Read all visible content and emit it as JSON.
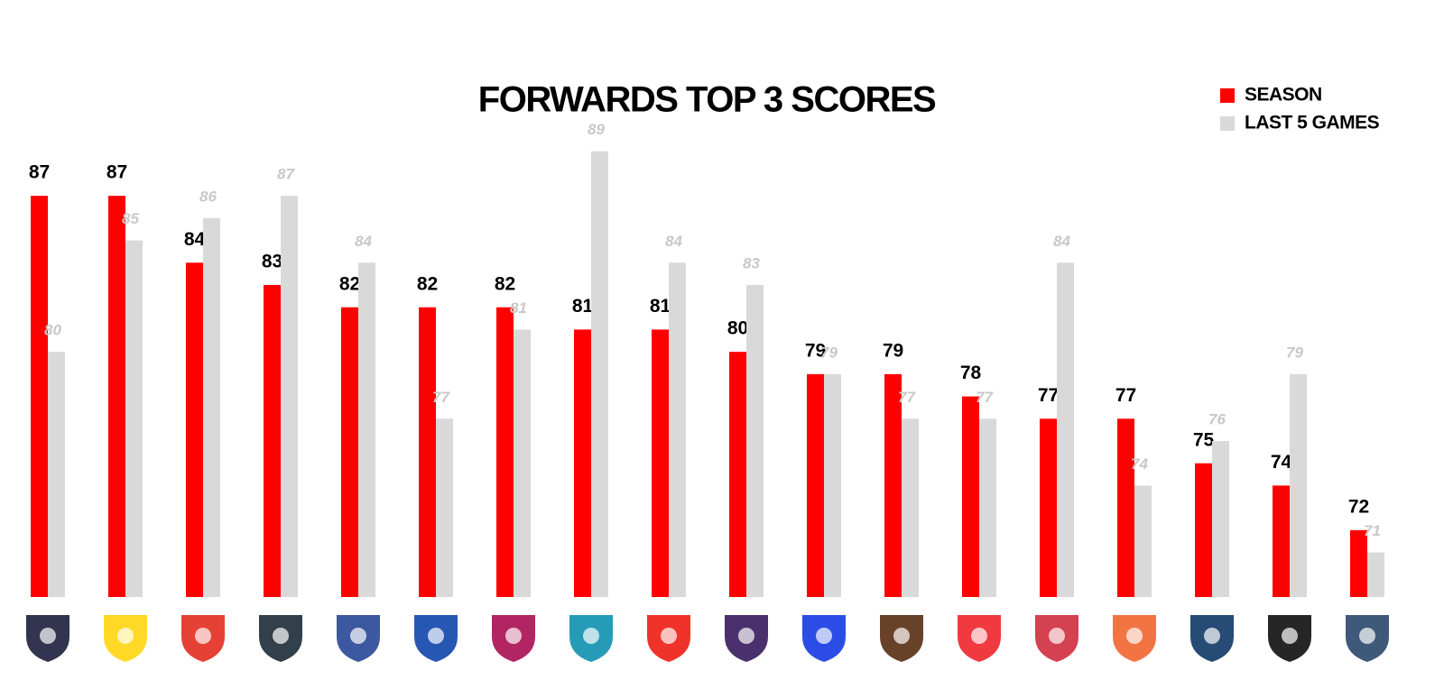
{
  "chart_data": {
    "type": "bar",
    "title": "FORWARDS TOP 3 SCORES",
    "categories": [
      null,
      null,
      null,
      null,
      null,
      null,
      null,
      null,
      null,
      null,
      null,
      null,
      null,
      null,
      null,
      null,
      null,
      null
    ],
    "series": [
      {
        "name": "SEASON",
        "color": "#ff0000",
        "values": [
          87,
          87,
          84,
          83,
          82,
          82,
          82,
          81,
          81,
          80,
          79,
          79,
          78,
          77,
          77,
          75,
          74,
          72
        ]
      },
      {
        "name": "LAST 5 GAMES",
        "color": "#d9d9d9",
        "values": [
          80,
          85,
          86,
          87,
          84,
          77,
          81,
          89,
          84,
          83,
          79,
          77,
          77,
          84,
          74,
          76,
          79,
          71
        ]
      }
    ],
    "ylim": [
      69,
      90
    ],
    "legend": "top-right"
  }
}
